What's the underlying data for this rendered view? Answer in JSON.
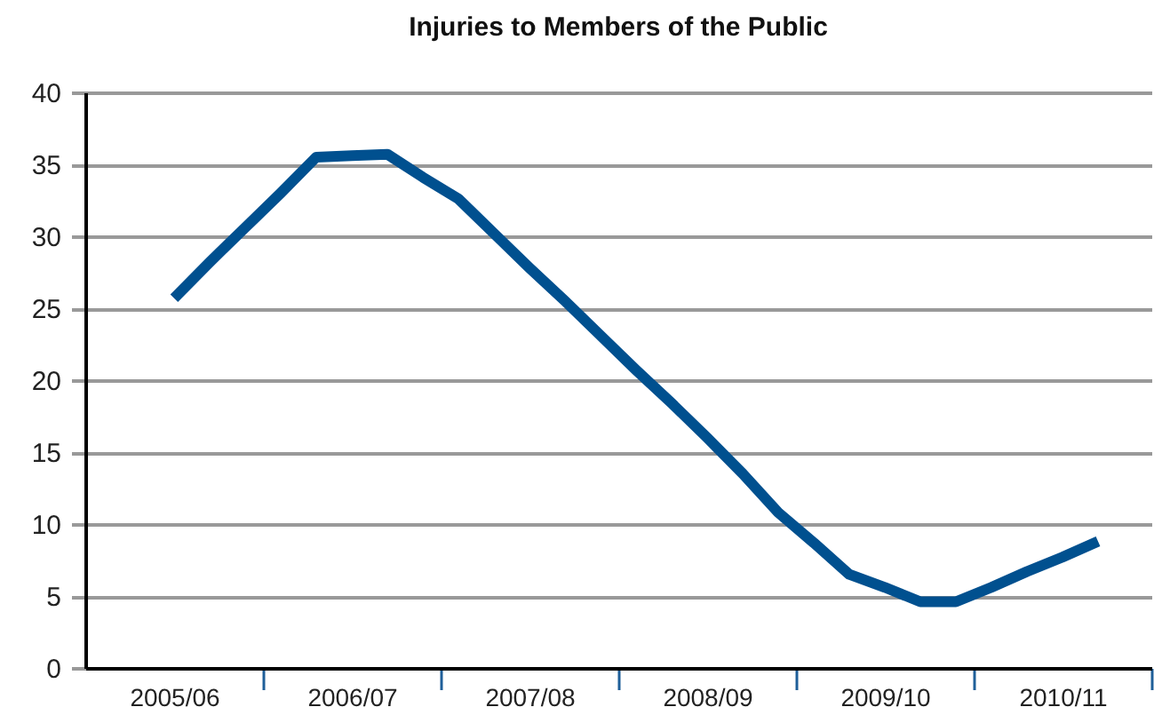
{
  "chart_data": {
    "type": "line",
    "title": "Injuries to Members of the Public",
    "categories": [
      null,
      null,
      "2005/06",
      null,
      null,
      null,
      null,
      "2006/07",
      null,
      null,
      null,
      null,
      "2007/08",
      null,
      null,
      null,
      null,
      "2008/09",
      null,
      null,
      null,
      null,
      "2009/10",
      null,
      null,
      null,
      null,
      "2010/11",
      null,
      null
    ],
    "series": [
      {
        "color": "#00508f",
        "values": [
          null,
          null,
          25.7,
          28.2,
          30.6,
          33.0,
          35.5,
          35.6,
          35.7,
          34.1,
          32.6,
          30.2,
          27.8,
          25.5,
          23.1,
          20.7,
          18.4,
          16.0,
          13.5,
          10.8,
          8.7,
          6.5,
          5.6,
          4.6,
          4.6,
          5.6,
          6.7,
          7.7,
          8.8,
          null
        ]
      }
    ],
    "ylim": [
      0,
      40
    ],
    "yticks": [
      0,
      5,
      10,
      15,
      20,
      25,
      30,
      35,
      40
    ],
    "grid": "y"
  }
}
